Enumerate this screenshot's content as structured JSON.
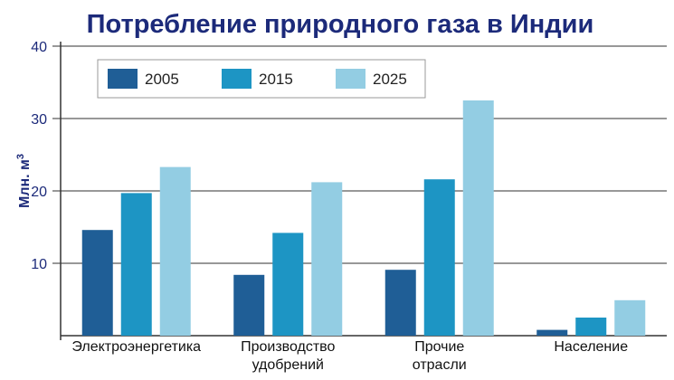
{
  "chart_data": {
    "type": "bar",
    "title": "Потребление природного газа в Индии",
    "ylabel": "Млн. м",
    "ylabel_sup": "3",
    "xlabel": "",
    "ylim": [
      0,
      40
    ],
    "yticks": [
      "10",
      "20",
      "30",
      "40"
    ],
    "grid": true,
    "legend_position": "top-left",
    "categories": [
      [
        "Электроэнергетика"
      ],
      [
        "Производство",
        "удобрений"
      ],
      [
        "Прочие",
        "отрасли"
      ],
      [
        "Население"
      ]
    ],
    "series": [
      {
        "name": "2005",
        "color": "#1f5e96",
        "values": [
          14.6,
          8.4,
          9.1,
          0.8
        ]
      },
      {
        "name": "2015",
        "color": "#1d95c4",
        "values": [
          19.7,
          14.2,
          21.6,
          2.5
        ]
      },
      {
        "name": "2025",
        "color": "#93cde3",
        "values": [
          23.3,
          21.2,
          32.5,
          4.9
        ]
      }
    ]
  }
}
